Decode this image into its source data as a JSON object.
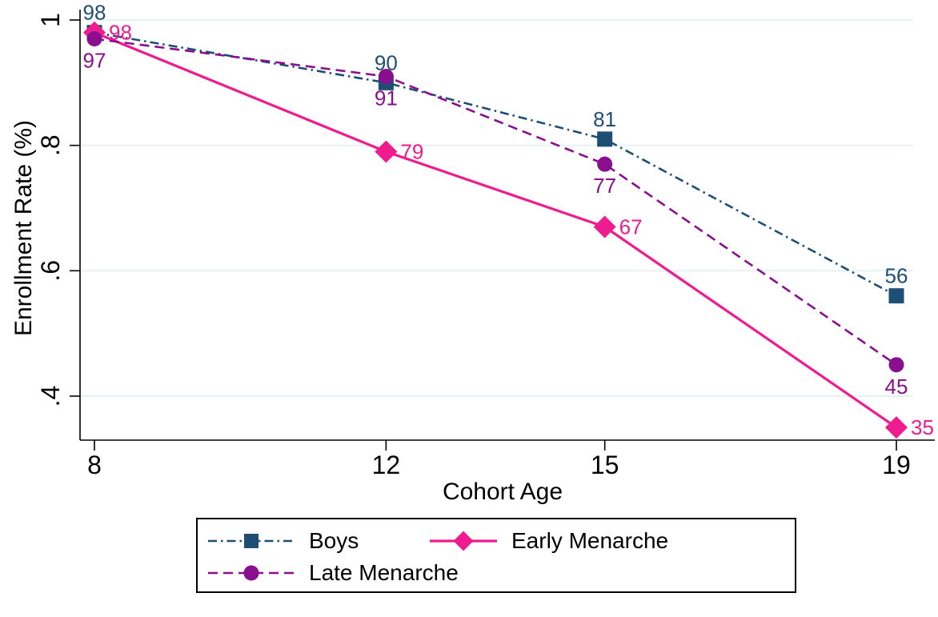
{
  "axes": {
    "y_title": "Enrollment Rate (%)",
    "x_title": "Cohort Age",
    "y_ticks": [
      {
        "label": "1",
        "value": 1.0
      },
      {
        "label": ".8",
        "value": 0.8
      },
      {
        "label": ".6",
        "value": 0.6
      },
      {
        "label": ".4",
        "value": 0.4
      }
    ],
    "x_ticks": [
      {
        "label": "8",
        "value": 8
      },
      {
        "label": "12",
        "value": 12
      },
      {
        "label": "15",
        "value": 15
      },
      {
        "label": "19",
        "value": 19
      }
    ]
  },
  "chart_data": {
    "type": "line",
    "title": "",
    "xlabel": "Cohort Age",
    "ylabel": "Enrollment Rate (%)",
    "x": [
      8,
      12,
      15,
      19
    ],
    "xlim": [
      8,
      19
    ],
    "ylim": [
      0.33,
      1.0
    ],
    "grid": true,
    "legend_position": "bottom",
    "series": [
      {
        "name": "Boys",
        "values": [
          0.98,
          0.9,
          0.81,
          0.56
        ],
        "point_labels": [
          "98",
          "90",
          "81",
          "56"
        ],
        "color": "#1d4f74",
        "marker": "square",
        "line_style": "dash-dot",
        "label_position": "above"
      },
      {
        "name": "Early Menarche",
        "values": [
          0.98,
          0.79,
          0.67,
          0.35
        ],
        "point_labels": [
          "98",
          "79",
          "67",
          "35"
        ],
        "color": "#ee1c8f",
        "marker": "diamond",
        "line_style": "solid",
        "label_position": "right"
      },
      {
        "name": "Late Menarche",
        "values": [
          0.97,
          0.91,
          0.77,
          0.45
        ],
        "point_labels": [
          "97",
          "91",
          "77",
          "45"
        ],
        "color": "#8a0f8f",
        "marker": "circle",
        "line_style": "dashed",
        "label_position": "below"
      }
    ]
  },
  "legend": {
    "items": [
      {
        "label": "Boys",
        "series": 0
      },
      {
        "label": "Early Menarche",
        "series": 1
      },
      {
        "label": "Late Menarche",
        "series": 2
      }
    ]
  },
  "colors": {
    "boys": "#1d4f74",
    "early_menarche": "#ee1c8f",
    "late_menarche": "#8a0f8f",
    "gridline": "#e8f1f2",
    "axis": "#000000",
    "background": "#ffffff"
  }
}
